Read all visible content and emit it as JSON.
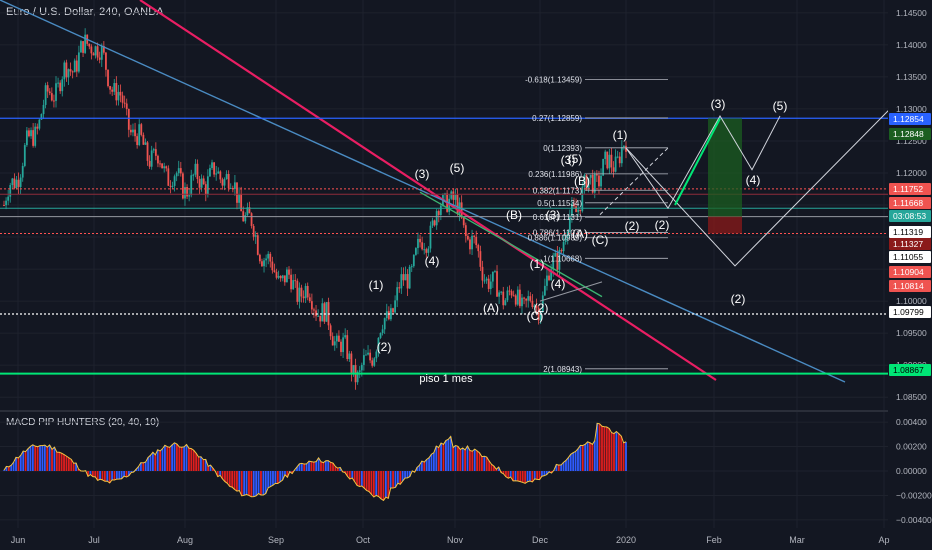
{
  "header": {
    "symbol_title": "Euro / U.S. Dollar, 240, OANDA"
  },
  "macd_indicator": {
    "title": "MACD PIP HUNTERS (20, 40, 10)"
  },
  "colors": {
    "background": "#131722",
    "grid": "#1e222d",
    "axis_text": "#b2b5be",
    "candle_up": "#26a69a",
    "candle_down": "#ef5350",
    "trend_red": "#e91e63",
    "trend_blue": "#4a8bc2",
    "support_green": "#00e676",
    "level_blue": "#2962ff",
    "projection": "#d1d4dc",
    "macd_up": "#2f5bff",
    "macd_down": "#e01e1e"
  },
  "chart_data": {
    "type": "line",
    "title": "Euro / U.S. Dollar, 240, OANDA",
    "xlabel": "",
    "ylabel": "",
    "ylim": [
      1.083,
      1.147
    ],
    "y_ticks": [
      "1.14500",
      "1.14000",
      "1.13500",
      "1.13000",
      "1.12500",
      "1.12000",
      "1.11500",
      "1.11000",
      "1.10500",
      "1.10000",
      "1.09500",
      "1.09000",
      "1.08500"
    ],
    "x_ticks": [
      "Jun",
      "Jul",
      "Aug",
      "Sep",
      "Oct",
      "Nov",
      "Dec",
      "2020",
      "Feb",
      "Mar",
      "Ap"
    ],
    "grid": true,
    "series": [
      {
        "name": "",
        "x": [
          "Jun",
          "Jun 15",
          "Jul",
          "Jul 15",
          "Aug",
          "Aug 15",
          "Sep",
          "Sep 15",
          "Oct",
          "Oct 15",
          "Nov",
          "Nov 15",
          "Dec",
          "Dec 15",
          "2020"
        ],
        "values": [
          1.115,
          1.132,
          1.141,
          1.125,
          1.118,
          1.12,
          1.105,
          1.1,
          1.088,
          1.103,
          1.117,
          1.102,
          1.099,
          1.117,
          1.1239
        ]
      }
    ],
    "price_labels": [
      "1.12854",
      "1.12848",
      "1.11752",
      "1.11668",
      "03:08:53",
      "1.11319",
      "1.11327",
      "1.11055",
      "1.10904",
      "1.10814",
      "1.09799",
      "1.08867"
    ],
    "fib_levels": [
      "-0.618(1.13459)",
      "0.27(1.12859)",
      "0(1.12393)",
      "0.236(1.11986)",
      "0.382(1.1173)",
      "0.5(1.11534)",
      "0.618(1.1131)",
      "0.786(1.1107)",
      "0.886(1.10989)",
      "1(1.10668)",
      "2(1.08943)"
    ],
    "wave_labels": [
      "(1)",
      "(2)",
      "(3)",
      "(4)",
      "(5)",
      "(A)",
      "(B)",
      "(C)",
      "(1)",
      "(2)",
      "(3)",
      "(4)",
      "(5)",
      "(2)",
      "(1)",
      "(3)",
      "(A)",
      "(B)",
      "(C)",
      "(2)",
      "(3)",
      "(4)",
      "(5)",
      "(2)"
    ],
    "annotations": [
      "piso 1 mes"
    ]
  },
  "macd_chart_data": {
    "type": "bar",
    "y_ticks": [
      "0.00400",
      "0.00200",
      "0.00000",
      "−0.00200",
      "−0.00400"
    ],
    "ylim": [
      -0.0045,
      0.0045
    ]
  }
}
